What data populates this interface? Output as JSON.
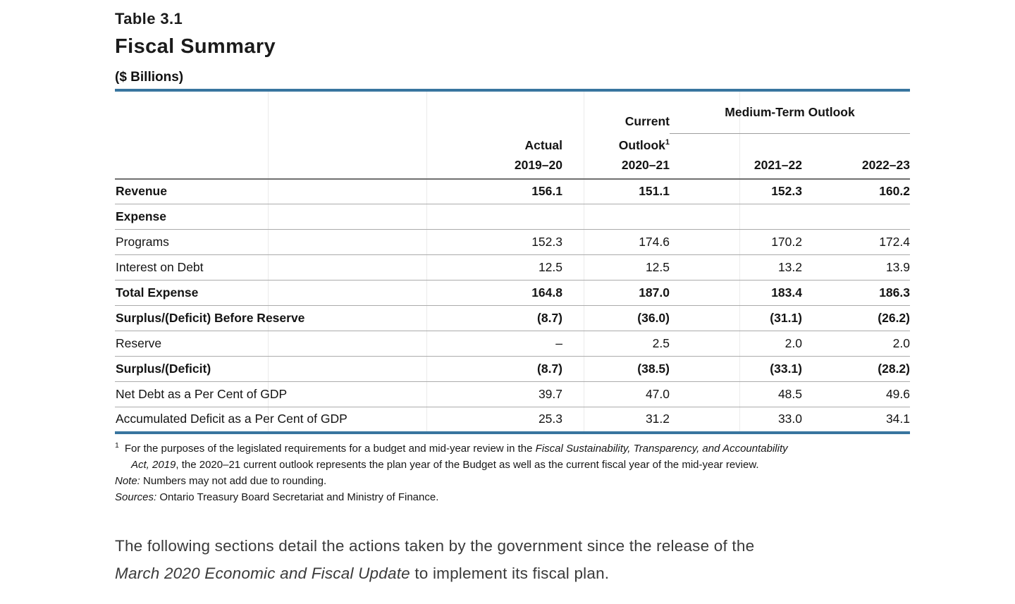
{
  "page": {
    "table_label": "Table 3.1",
    "heading": "Fiscal Summary",
    "units": "($ Billions)"
  },
  "table": {
    "header": {
      "current_line1": "Current",
      "current_line2": "Outlook",
      "current_sup": "1",
      "actual": "Actual",
      "medium_term": "Medium-Term Outlook",
      "years": [
        "2019–20",
        "2020–21",
        "2021–22",
        "2022–23"
      ]
    },
    "rows": [
      {
        "label": "Revenue",
        "bold": true,
        "values": [
          "156.1",
          "151.1",
          "152.3",
          "160.2"
        ]
      },
      {
        "label": "Expense",
        "bold": true,
        "values": [
          "",
          "",
          "",
          ""
        ]
      },
      {
        "label": "Programs",
        "bold": false,
        "values": [
          "152.3",
          "174.6",
          "170.2",
          "172.4"
        ]
      },
      {
        "label": "Interest on Debt",
        "bold": false,
        "values": [
          "12.5",
          "12.5",
          "13.2",
          "13.9"
        ]
      },
      {
        "label": "Total Expense",
        "bold": true,
        "values": [
          "164.8",
          "187.0",
          "183.4",
          "186.3"
        ]
      },
      {
        "label": "Surplus/(Deficit) Before Reserve",
        "bold": true,
        "values": [
          "(8.7)",
          "(36.0)",
          "(31.1)",
          "(26.2)"
        ]
      },
      {
        "label": "Reserve",
        "bold": false,
        "values": [
          "–",
          "2.5",
          "2.0",
          "2.0"
        ]
      },
      {
        "label": "Surplus/(Deficit)",
        "bold": true,
        "values": [
          "(8.7)",
          "(38.5)",
          "(33.1)",
          "(28.2)"
        ]
      },
      {
        "label": "Net Debt as a Per Cent of GDP",
        "bold": false,
        "values": [
          "39.7",
          "47.0",
          "48.5",
          "49.6"
        ]
      },
      {
        "label": "Accumulated Deficit as a Per Cent of GDP",
        "bold": false,
        "values": [
          "25.3",
          "31.2",
          "33.0",
          "34.1"
        ]
      }
    ]
  },
  "footnotes": {
    "marker": "1",
    "footnote1_lines": [
      [
        {
          "text": "For the purposes of the legislated requirements for a budget and mid-year review in the "
        },
        {
          "text": "Fiscal Sustainability, Transparency, and Accountability",
          "italic": true
        }
      ],
      [
        {
          "text": "Act, 2019",
          "italic": true
        },
        {
          "text": ", the 2020–21 current outlook represents the plan year of the Budget as well as the current fiscal year of the mid-year review."
        }
      ]
    ],
    "note_line": [
      {
        "text": "Note:",
        "italic": true
      },
      {
        "text": " Numbers may not add due to rounding."
      }
    ],
    "sources_line": [
      {
        "text": "Sources:",
        "italic": true
      },
      {
        "text": " Ontario Treasury Board Secretariat and Ministry of Finance."
      }
    ]
  },
  "paragraph": {
    "lines": [
      [
        {
          "text": "The following sections detail the actions taken by the government since the release of the"
        }
      ],
      [
        {
          "text": "March 2020 Economic and Fiscal Update",
          "italic": true
        },
        {
          "text": " to implement its fiscal plan."
        }
      ]
    ]
  },
  "colors": {
    "accent_blue": "#38759f",
    "header_rule": "#6f6f6f",
    "row_rule": "#ababab",
    "medium_term_rule": "#9e9e9e"
  }
}
